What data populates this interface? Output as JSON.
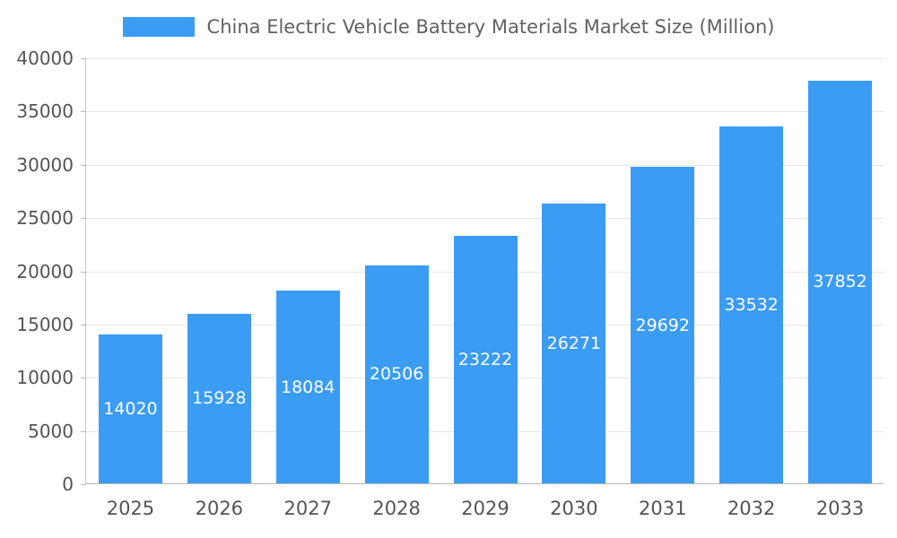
{
  "chart_data": {
    "type": "bar",
    "title": "China Electric Vehicle Battery Materials Market Size (Million)",
    "categories": [
      "2025",
      "2026",
      "2027",
      "2028",
      "2029",
      "2030",
      "2031",
      "2032",
      "2033"
    ],
    "values": [
      14020,
      15928,
      18084,
      20506,
      23222,
      26271,
      29692,
      33532,
      37852
    ],
    "xlabel": "",
    "ylabel": "",
    "ylim": [
      0,
      40000
    ],
    "yticks": [
      0,
      5000,
      10000,
      15000,
      20000,
      25000,
      30000,
      35000,
      40000
    ],
    "grid": true,
    "legend_position": "top",
    "colors": {
      "bar": "#3b9cf4",
      "bar_value_label": "#ffffff",
      "axis_text": "#545454",
      "title_text": "#616161",
      "gridline": "#e4e4e4"
    }
  }
}
